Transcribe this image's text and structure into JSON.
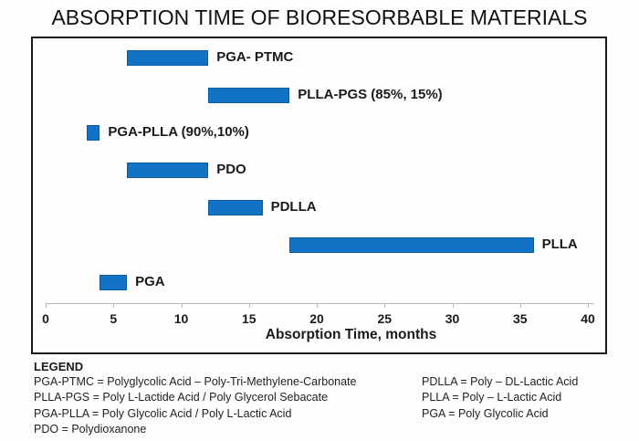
{
  "title": "ABSORPTION TIME OF BIORESORBABLE MATERIALS",
  "chart_data": {
    "type": "bar",
    "orientation": "horizontal-range",
    "title": "ABSORPTION TIME OF BIORESORBABLE MATERIALS",
    "bars": [
      {
        "label": "PGA- PTMC",
        "start": 6,
        "end": 12
      },
      {
        "label": "PLLA-PGS (85%, 15%)",
        "start": 12,
        "end": 18
      },
      {
        "label": "PGA-PLLA (90%,10%)",
        "start": 3,
        "end": 4
      },
      {
        "label": "PDO",
        "start": 6,
        "end": 12
      },
      {
        "label": "PDLLA",
        "start": 12,
        "end": 16
      },
      {
        "label": "PLLA",
        "start": 18,
        "end": 36
      },
      {
        "label": "PGA",
        "start": 4,
        "end": 6
      }
    ],
    "xlabel": "Absorption Time, months",
    "xlim": [
      0,
      40
    ],
    "xticks": [
      0,
      5,
      10,
      15,
      20,
      25,
      30,
      35,
      40
    ],
    "grid": "off",
    "bar_color": "#1273c4",
    "bar_edge_color": "#0b5fa0",
    "axis_color": "#b8b8b8",
    "text_color": "#1a1a1a"
  },
  "legend": {
    "heading": "LEGEND",
    "left": [
      "PGA-PTMC = Polyglycolic Acid – Poly-Tri-Methylene-Carbonate",
      "PLLA-PGS = Poly L-Lactide Acid / Poly Glycerol Sebacate",
      "PGA-PLLA = Poly Glycolic Acid / Poly L-Lactic Acid",
      "PDO = Polydioxanone"
    ],
    "right": [
      "PDLLA = Poly – DL-Lactic Acid",
      "PLLA = Poly – L-Lactic Acid",
      "PGA = Poly Glycolic Acid"
    ]
  }
}
